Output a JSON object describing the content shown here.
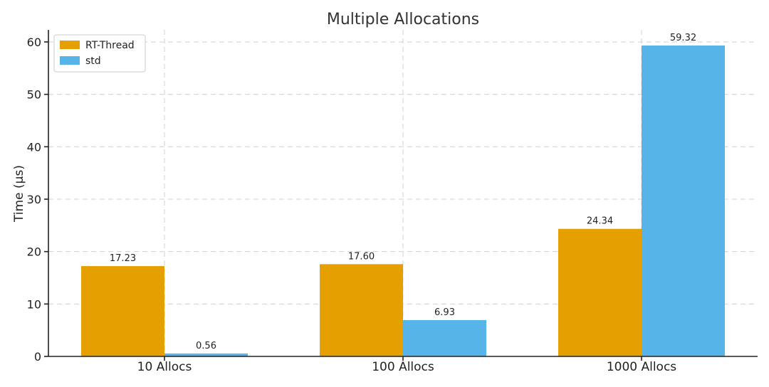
{
  "chart_data": {
    "type": "bar",
    "title": "Multiple Allocations",
    "xlabel": "",
    "ylabel": "Time (µs)",
    "categories": [
      "10 Allocs",
      "100 Allocs",
      "1000 Allocs"
    ],
    "series": [
      {
        "name": "RT-Thread",
        "values": [
          17.23,
          17.6,
          24.34
        ],
        "color": "#E69F00",
        "labels": [
          "17.23",
          "17.60",
          "24.34"
        ]
      },
      {
        "name": "std",
        "values": [
          0.56,
          6.93,
          59.32
        ],
        "color": "#56B4E9",
        "labels": [
          "0.56",
          "6.93",
          "59.32"
        ]
      }
    ],
    "ylim": [
      0,
      62.3
    ],
    "yticks": [
      0,
      10,
      20,
      30,
      40,
      50,
      60
    ],
    "grid": true,
    "legend_position": "top-left"
  }
}
